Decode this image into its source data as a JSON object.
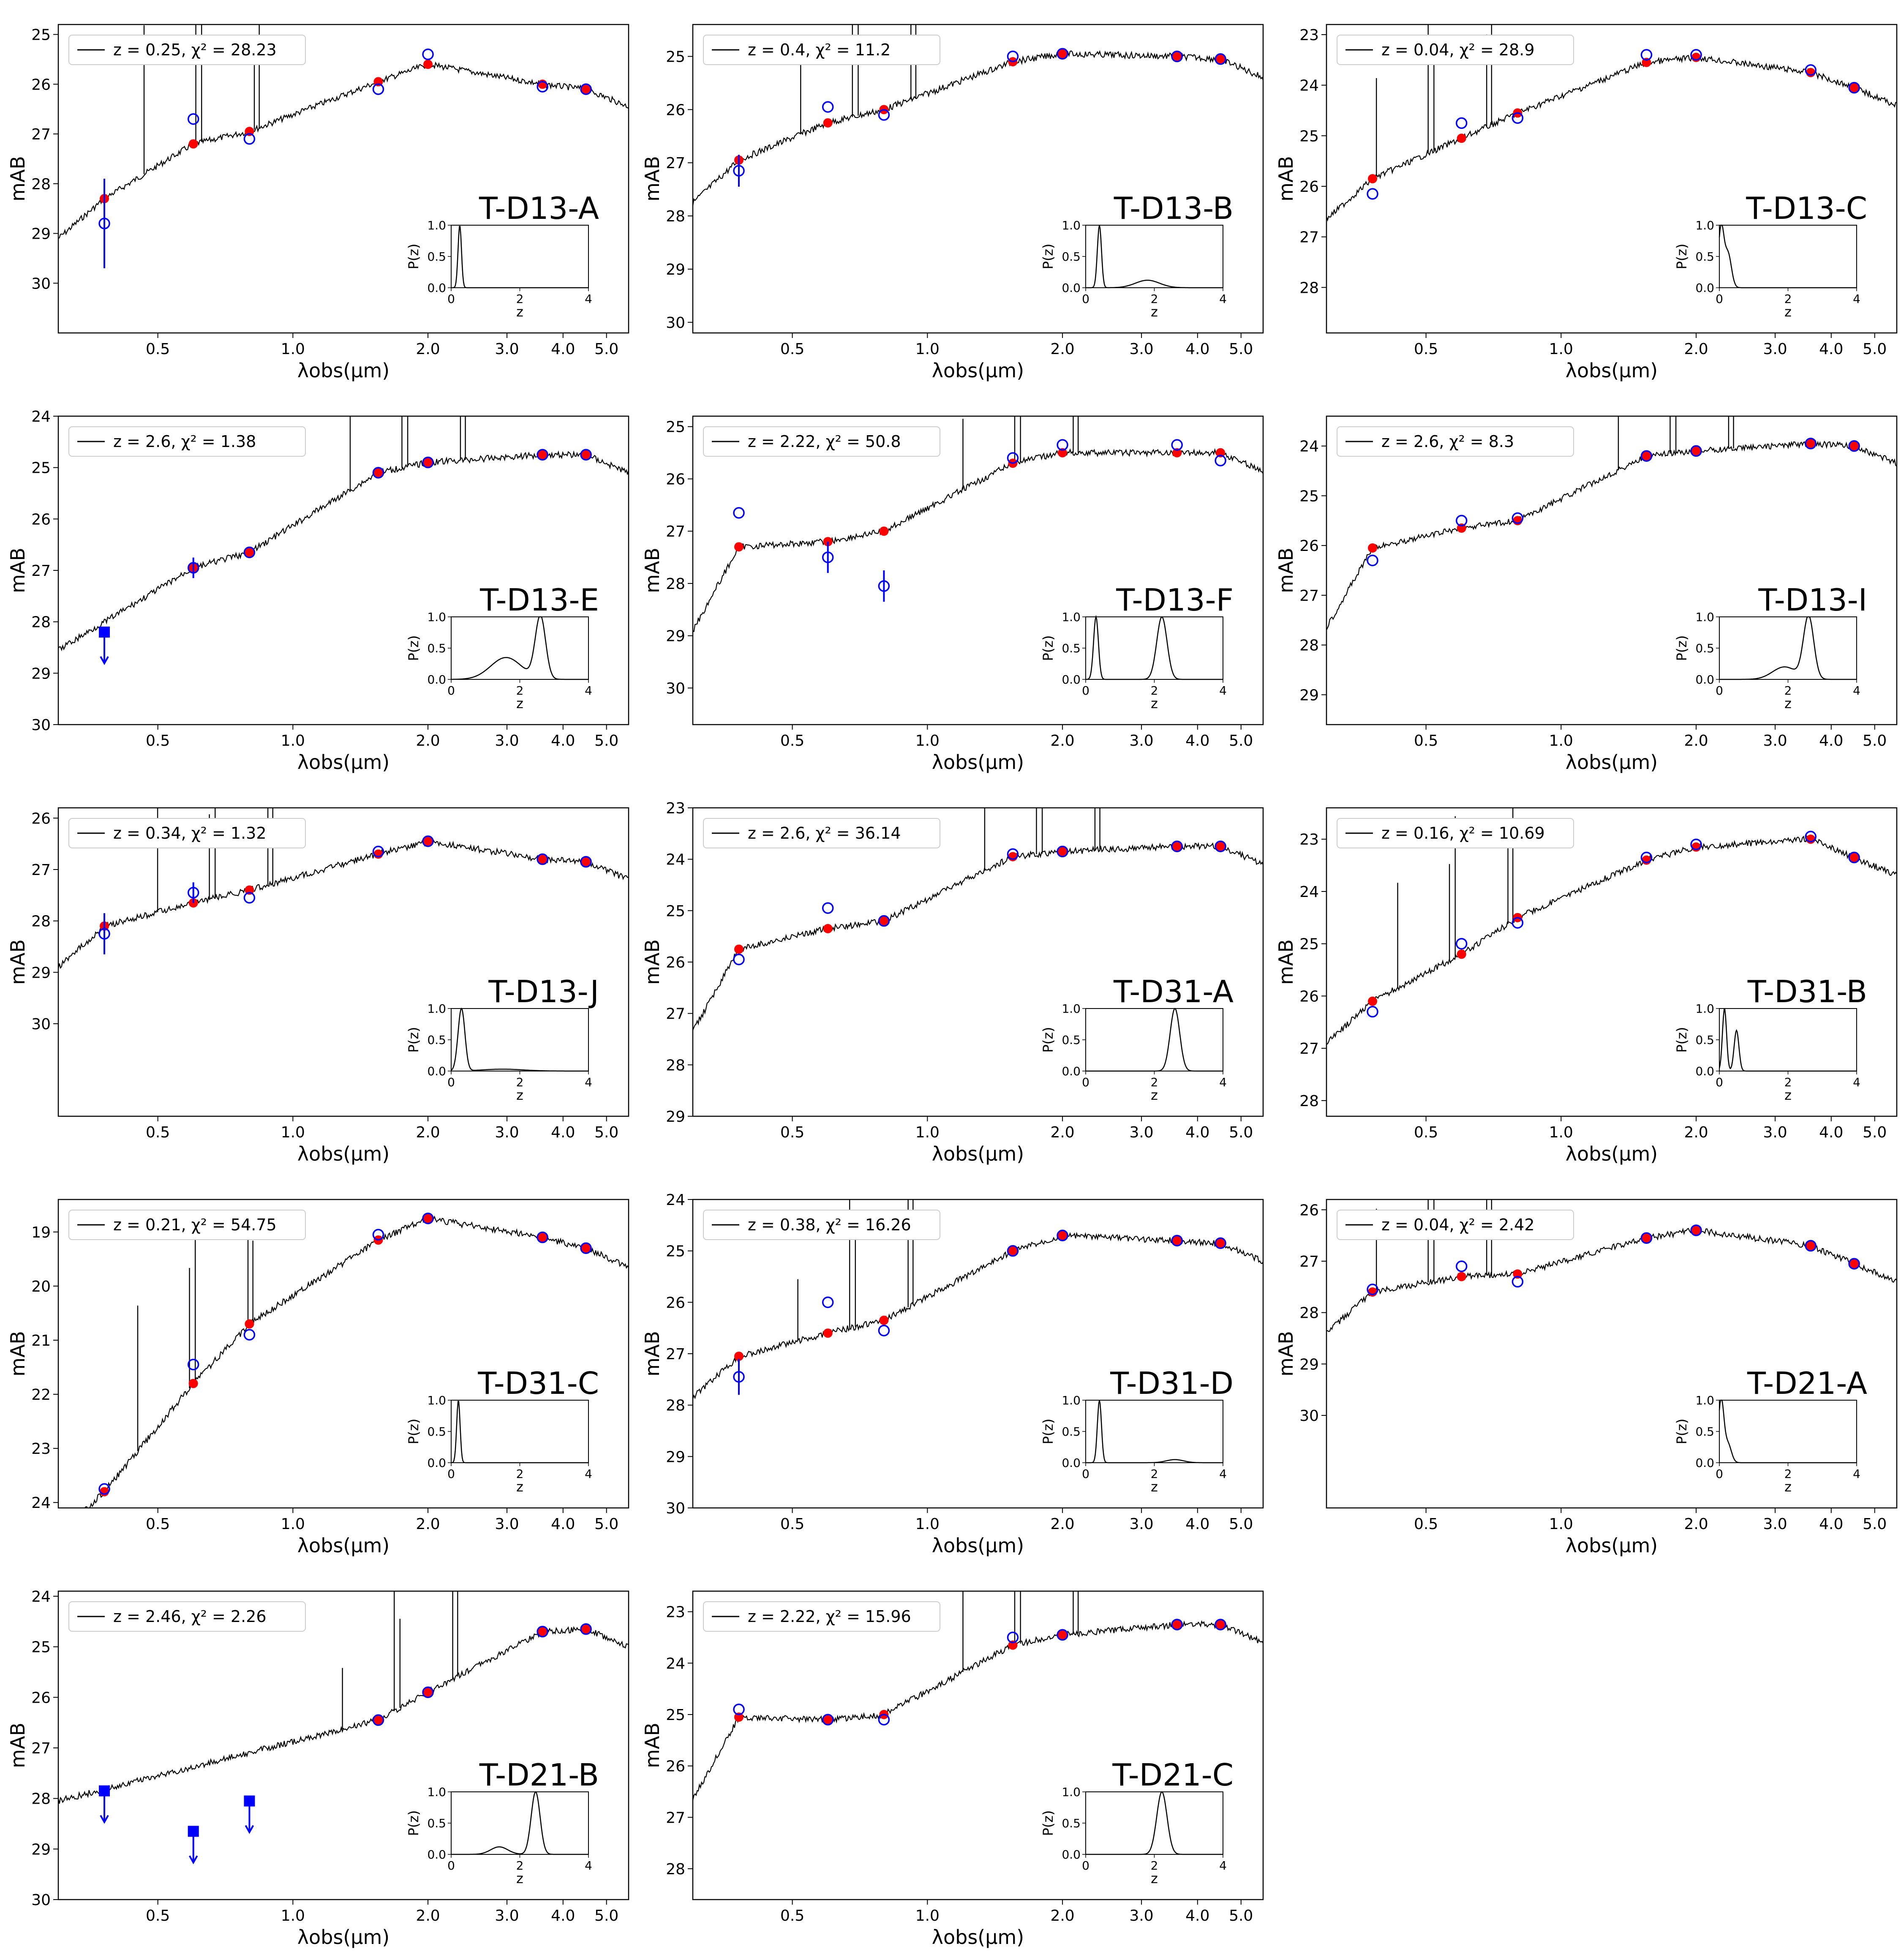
{
  "figure": {
    "xlabel": "λobs(μm)",
    "ylabel": "mAB",
    "xticks": [
      "0.5",
      "1.0",
      "2.0",
      "3.0",
      "4.0",
      "5.0"
    ],
    "inset_xlabel": "z",
    "inset_ylabel": "P(z)",
    "inset_xticks": [
      "0",
      "2",
      "4"
    ],
    "inset_yticks": [
      "0.0",
      "0.5",
      "1.0"
    ]
  },
  "chart_data": [
    {
      "type": "line",
      "name": "T-D13-A",
      "legend": "z = 0.25, χ² = 28.23",
      "z": 0.25,
      "chi2": 28.23,
      "ylim": [
        31,
        24.8
      ],
      "yticks": [
        25,
        26,
        27,
        28,
        29,
        30
      ],
      "obs": [
        [
          0.38,
          28.8,
          0.9
        ],
        [
          0.6,
          26.7,
          0
        ],
        [
          0.8,
          27.1,
          0
        ],
        [
          1.55,
          26.1,
          0
        ],
        [
          2.0,
          25.4,
          0
        ],
        [
          3.6,
          26.05,
          0
        ],
        [
          4.5,
          26.1,
          0
        ]
      ],
      "model": [
        [
          0.38,
          28.3
        ],
        [
          0.6,
          27.2
        ],
        [
          0.8,
          26.95
        ],
        [
          1.55,
          25.95
        ],
        [
          2.0,
          25.6
        ],
        [
          3.6,
          26.0
        ],
        [
          4.5,
          26.1
        ]
      ],
      "limits": [],
      "pz_peaks": [
        [
          0.25,
          1.0,
          0.05
        ]
      ]
    },
    {
      "type": "line",
      "name": "T-D13-B",
      "legend": "z = 0.4, χ² = 11.2",
      "z": 0.4,
      "chi2": 11.2,
      "ylim": [
        30.2,
        24.4
      ],
      "yticks": [
        25,
        26,
        27,
        28,
        29,
        30
      ],
      "obs": [
        [
          0.38,
          27.15,
          0.3
        ],
        [
          0.6,
          25.95,
          0
        ],
        [
          0.8,
          26.1,
          0
        ],
        [
          1.55,
          25.0,
          0
        ],
        [
          2.0,
          24.95,
          0
        ],
        [
          3.6,
          25.0,
          0
        ],
        [
          4.5,
          25.05,
          0
        ]
      ],
      "model": [
        [
          0.38,
          26.95
        ],
        [
          0.6,
          26.25
        ],
        [
          0.8,
          26.0
        ],
        [
          1.55,
          25.1
        ],
        [
          2.0,
          24.95
        ],
        [
          3.6,
          25.0
        ],
        [
          4.5,
          25.05
        ]
      ],
      "limits": [],
      "pz_peaks": [
        [
          0.4,
          1.0,
          0.06
        ],
        [
          1.8,
          0.12,
          0.35
        ]
      ]
    },
    {
      "type": "line",
      "name": "T-D13-C",
      "legend": "z = 0.04, χ² = 28.9",
      "z": 0.04,
      "chi2": 28.9,
      "ylim": [
        28.9,
        22.8
      ],
      "yticks": [
        23,
        24,
        25,
        26,
        27,
        28
      ],
      "obs": [
        [
          0.38,
          26.15,
          0
        ],
        [
          0.6,
          24.75,
          0
        ],
        [
          0.8,
          24.65,
          0
        ],
        [
          1.55,
          23.4,
          0
        ],
        [
          2.0,
          23.4,
          0
        ],
        [
          3.6,
          23.7,
          0
        ],
        [
          4.5,
          24.05,
          0
        ]
      ],
      "model": [
        [
          0.38,
          25.85
        ],
        [
          0.6,
          25.05
        ],
        [
          0.8,
          24.55
        ],
        [
          1.55,
          23.55
        ],
        [
          2.0,
          23.45
        ],
        [
          3.6,
          23.75
        ],
        [
          4.5,
          24.05
        ]
      ],
      "limits": [],
      "pz_peaks": [
        [
          0.05,
          0.95,
          0.08
        ],
        [
          0.25,
          0.55,
          0.1
        ]
      ]
    },
    {
      "type": "line",
      "name": "T-D13-E",
      "legend": "z = 2.6, χ² = 1.38",
      "z": 2.6,
      "chi2": 1.38,
      "ylim": [
        30.0,
        24.0
      ],
      "yticks": [
        24,
        25,
        26,
        27,
        28,
        29,
        30
      ],
      "obs": [
        [
          0.6,
          26.95,
          0.2
        ],
        [
          0.8,
          26.65,
          0
        ],
        [
          1.55,
          25.1,
          0
        ],
        [
          2.0,
          24.9,
          0
        ],
        [
          3.6,
          24.75,
          0
        ],
        [
          4.5,
          24.75,
          0
        ]
      ],
      "model": [
        [
          0.6,
          26.95
        ],
        [
          0.8,
          26.65
        ],
        [
          1.55,
          25.1
        ],
        [
          2.0,
          24.9
        ],
        [
          3.6,
          24.75
        ],
        [
          4.5,
          24.75
        ]
      ],
      "limits": [
        [
          0.38,
          28.2
        ]
      ],
      "pz_peaks": [
        [
          2.6,
          1.0,
          0.15
        ],
        [
          1.6,
          0.35,
          0.45
        ]
      ]
    },
    {
      "type": "line",
      "name": "T-D13-F",
      "legend": "z = 2.22, χ² = 50.8",
      "z": 2.22,
      "chi2": 50.8,
      "ylim": [
        30.7,
        24.8
      ],
      "yticks": [
        25,
        26,
        27,
        28,
        29,
        30
      ],
      "obs": [
        [
          0.38,
          26.65,
          0
        ],
        [
          0.6,
          27.5,
          0.3
        ],
        [
          0.8,
          28.05,
          0.3
        ],
        [
          1.55,
          25.6,
          0
        ],
        [
          2.0,
          25.35,
          0
        ],
        [
          3.6,
          25.35,
          0
        ],
        [
          4.5,
          25.65,
          0
        ]
      ],
      "model": [
        [
          0.38,
          27.3
        ],
        [
          0.6,
          27.2
        ],
        [
          0.8,
          27.0
        ],
        [
          1.55,
          25.7
        ],
        [
          2.0,
          25.5
        ],
        [
          3.6,
          25.5
        ],
        [
          4.5,
          25.5
        ]
      ],
      "limits": [],
      "pz_peaks": [
        [
          0.3,
          1.0,
          0.07
        ],
        [
          2.22,
          1.0,
          0.15
        ]
      ]
    },
    {
      "type": "line",
      "name": "T-D13-I",
      "legend": "z = 2.6, χ² = 8.3",
      "z": 2.6,
      "chi2": 8.3,
      "ylim": [
        29.6,
        23.4
      ],
      "yticks": [
        24,
        25,
        26,
        27,
        28,
        29
      ],
      "obs": [
        [
          0.38,
          26.3,
          0
        ],
        [
          0.6,
          25.5,
          0
        ],
        [
          0.8,
          25.45,
          0
        ],
        [
          1.55,
          24.2,
          0
        ],
        [
          2.0,
          24.1,
          0
        ],
        [
          3.6,
          23.95,
          0
        ],
        [
          4.5,
          24.0,
          0
        ]
      ],
      "model": [
        [
          0.38,
          26.05
        ],
        [
          0.6,
          25.65
        ],
        [
          0.8,
          25.5
        ],
        [
          1.55,
          24.2
        ],
        [
          2.0,
          24.1
        ],
        [
          3.6,
          23.95
        ],
        [
          4.5,
          24.0
        ]
      ],
      "limits": [],
      "pz_peaks": [
        [
          2.6,
          1.0,
          0.15
        ],
        [
          1.9,
          0.2,
          0.35
        ]
      ]
    },
    {
      "type": "line",
      "name": "T-D13-J",
      "legend": "z = 0.34, χ² = 1.32",
      "z": 0.34,
      "chi2": 1.32,
      "ylim": [
        31.8,
        25.8
      ],
      "yticks": [
        26,
        27,
        28,
        29,
        30
      ],
      "obs": [
        [
          0.38,
          28.25,
          0.4
        ],
        [
          0.6,
          27.45,
          0.2
        ],
        [
          0.8,
          27.55,
          0
        ],
        [
          1.55,
          26.65,
          0
        ],
        [
          2.0,
          26.45,
          0
        ],
        [
          3.6,
          26.8,
          0
        ],
        [
          4.5,
          26.85,
          0
        ]
      ],
      "model": [
        [
          0.38,
          28.1
        ],
        [
          0.6,
          27.65
        ],
        [
          0.8,
          27.4
        ],
        [
          1.55,
          26.7
        ],
        [
          2.0,
          26.45
        ],
        [
          3.6,
          26.8
        ],
        [
          4.5,
          26.85
        ]
      ],
      "limits": [],
      "pz_peaks": [
        [
          0.3,
          1.0,
          0.1
        ],
        [
          1.5,
          0.03,
          0.6
        ]
      ]
    },
    {
      "type": "line",
      "name": "T-D31-A",
      "legend": "z = 2.6, χ² = 36.14",
      "z": 2.6,
      "chi2": 36.14,
      "ylim": [
        29.0,
        23.0
      ],
      "yticks": [
        23,
        24,
        25,
        26,
        27,
        28,
        29
      ],
      "obs": [
        [
          0.38,
          25.95,
          0
        ],
        [
          0.6,
          24.95,
          0
        ],
        [
          0.8,
          25.2,
          0
        ],
        [
          1.55,
          23.9,
          0
        ],
        [
          2.0,
          23.85,
          0
        ],
        [
          3.6,
          23.75,
          0
        ],
        [
          4.5,
          23.75,
          0
        ]
      ],
      "model": [
        [
          0.38,
          25.75
        ],
        [
          0.6,
          25.35
        ],
        [
          0.8,
          25.2
        ],
        [
          1.55,
          23.95
        ],
        [
          2.0,
          23.85
        ],
        [
          3.6,
          23.75
        ],
        [
          4.5,
          23.75
        ]
      ],
      "limits": [],
      "pz_peaks": [
        [
          2.6,
          1.0,
          0.14
        ]
      ]
    },
    {
      "type": "line",
      "name": "T-D31-B",
      "legend": "z = 0.16, χ² = 10.69",
      "z": 0.16,
      "chi2": 10.69,
      "ylim": [
        28.3,
        22.4
      ],
      "yticks": [
        23,
        24,
        25,
        26,
        27,
        28
      ],
      "obs": [
        [
          0.38,
          26.3,
          0
        ],
        [
          0.6,
          25.0,
          0
        ],
        [
          0.8,
          24.6,
          0
        ],
        [
          1.55,
          23.35,
          0
        ],
        [
          2.0,
          23.1,
          0
        ],
        [
          3.6,
          22.95,
          0
        ],
        [
          4.5,
          23.35,
          0
        ]
      ],
      "model": [
        [
          0.38,
          26.1
        ],
        [
          0.6,
          25.2
        ],
        [
          0.8,
          24.5
        ],
        [
          1.55,
          23.4
        ],
        [
          2.0,
          23.15
        ],
        [
          3.6,
          23.0
        ],
        [
          4.5,
          23.35
        ]
      ],
      "limits": [],
      "pz_peaks": [
        [
          0.15,
          1.0,
          0.06
        ],
        [
          0.5,
          0.65,
          0.07
        ]
      ]
    },
    {
      "type": "line",
      "name": "T-D31-C",
      "legend": "z = 0.21, χ² = 54.75",
      "z": 0.21,
      "chi2": 54.75,
      "ylim": [
        24.1,
        18.4
      ],
      "yticks": [
        19,
        20,
        21,
        22,
        23,
        24
      ],
      "obs": [
        [
          0.38,
          23.75,
          0
        ],
        [
          0.6,
          21.45,
          0
        ],
        [
          0.8,
          20.9,
          0
        ],
        [
          1.55,
          19.05,
          0
        ],
        [
          2.0,
          18.75,
          0
        ],
        [
          3.6,
          19.1,
          0
        ],
        [
          4.5,
          19.3,
          0
        ]
      ],
      "model": [
        [
          0.38,
          23.8
        ],
        [
          0.6,
          21.8
        ],
        [
          0.8,
          20.7
        ],
        [
          1.55,
          19.15
        ],
        [
          2.0,
          18.75
        ],
        [
          3.6,
          19.1
        ],
        [
          4.5,
          19.3
        ]
      ],
      "limits": [],
      "pz_peaks": [
        [
          0.21,
          1.0,
          0.05
        ]
      ]
    },
    {
      "type": "line",
      "name": "T-D31-D",
      "legend": "z = 0.38, χ² = 16.26",
      "z": 0.38,
      "chi2": 16.26,
      "ylim": [
        30.0,
        24.0
      ],
      "yticks": [
        24,
        25,
        26,
        27,
        28,
        29,
        30
      ],
      "obs": [
        [
          0.38,
          27.45,
          0.35
        ],
        [
          0.6,
          26.0,
          0
        ],
        [
          0.8,
          26.55,
          0
        ],
        [
          1.55,
          25.0,
          0
        ],
        [
          2.0,
          24.7,
          0
        ],
        [
          3.6,
          24.8,
          0
        ],
        [
          4.5,
          24.85,
          0
        ]
      ],
      "model": [
        [
          0.38,
          27.05
        ],
        [
          0.6,
          26.6
        ],
        [
          0.8,
          26.35
        ],
        [
          1.55,
          25.0
        ],
        [
          2.0,
          24.7
        ],
        [
          3.6,
          24.8
        ],
        [
          4.5,
          24.85
        ]
      ],
      "limits": [],
      "pz_peaks": [
        [
          0.4,
          1.0,
          0.06
        ],
        [
          2.6,
          0.05,
          0.25
        ]
      ]
    },
    {
      "type": "line",
      "name": "T-D21-A",
      "legend": "z = 0.04, χ² = 2.42",
      "z": 0.04,
      "chi2": 2.42,
      "ylim": [
        31.8,
        25.8
      ],
      "yticks": [
        26,
        27,
        28,
        29,
        30
      ],
      "obs": [
        [
          0.38,
          27.55,
          0
        ],
        [
          0.6,
          27.1,
          0
        ],
        [
          0.8,
          27.4,
          0
        ],
        [
          1.55,
          26.55,
          0
        ],
        [
          2.0,
          26.4,
          0
        ],
        [
          3.6,
          26.7,
          0
        ],
        [
          4.5,
          27.05,
          0
        ]
      ],
      "model": [
        [
          0.38,
          27.6
        ],
        [
          0.6,
          27.3
        ],
        [
          0.8,
          27.25
        ],
        [
          1.55,
          26.55
        ],
        [
          2.0,
          26.4
        ],
        [
          3.6,
          26.7
        ],
        [
          4.5,
          27.05
        ]
      ],
      "limits": [],
      "pz_peaks": [
        [
          0.05,
          1.0,
          0.08
        ],
        [
          0.25,
          0.3,
          0.1
        ]
      ]
    },
    {
      "type": "line",
      "name": "T-D21-B",
      "legend": "z = 2.46, χ² = 2.26",
      "z": 2.46,
      "chi2": 2.26,
      "ylim": [
        30.0,
        23.9
      ],
      "yticks": [
        24,
        25,
        26,
        27,
        28,
        29,
        30
      ],
      "obs": [
        [
          1.55,
          26.45,
          0
        ],
        [
          2.0,
          25.9,
          0
        ],
        [
          3.6,
          24.7,
          0
        ],
        [
          4.5,
          24.65,
          0
        ]
      ],
      "model": [
        [
          1.55,
          26.45
        ],
        [
          2.0,
          25.9
        ],
        [
          3.6,
          24.7
        ],
        [
          4.5,
          24.65
        ]
      ],
      "limits": [
        [
          0.38,
          27.85
        ],
        [
          0.6,
          28.65
        ],
        [
          0.8,
          28.05
        ]
      ],
      "pz_peaks": [
        [
          2.46,
          1.0,
          0.13
        ],
        [
          1.4,
          0.12,
          0.25
        ]
      ]
    },
    {
      "type": "line",
      "name": "T-D21-C",
      "legend": "z = 2.22, χ² = 15.96",
      "z": 2.22,
      "chi2": 15.96,
      "ylim": [
        28.6,
        22.6
      ],
      "yticks": [
        23,
        24,
        25,
        26,
        27,
        28
      ],
      "obs": [
        [
          0.38,
          24.9,
          0
        ],
        [
          0.6,
          25.1,
          0
        ],
        [
          0.8,
          25.1,
          0
        ],
        [
          1.55,
          23.5,
          0
        ],
        [
          2.0,
          23.45,
          0
        ],
        [
          3.6,
          23.25,
          0
        ],
        [
          4.5,
          23.25,
          0
        ]
      ],
      "model": [
        [
          0.38,
          25.05
        ],
        [
          0.6,
          25.1
        ],
        [
          0.8,
          25.0
        ],
        [
          1.55,
          23.65
        ],
        [
          2.0,
          23.45
        ],
        [
          3.6,
          23.25
        ],
        [
          4.5,
          23.25
        ]
      ],
      "limits": [],
      "pz_peaks": [
        [
          2.22,
          1.0,
          0.15
        ]
      ]
    }
  ]
}
